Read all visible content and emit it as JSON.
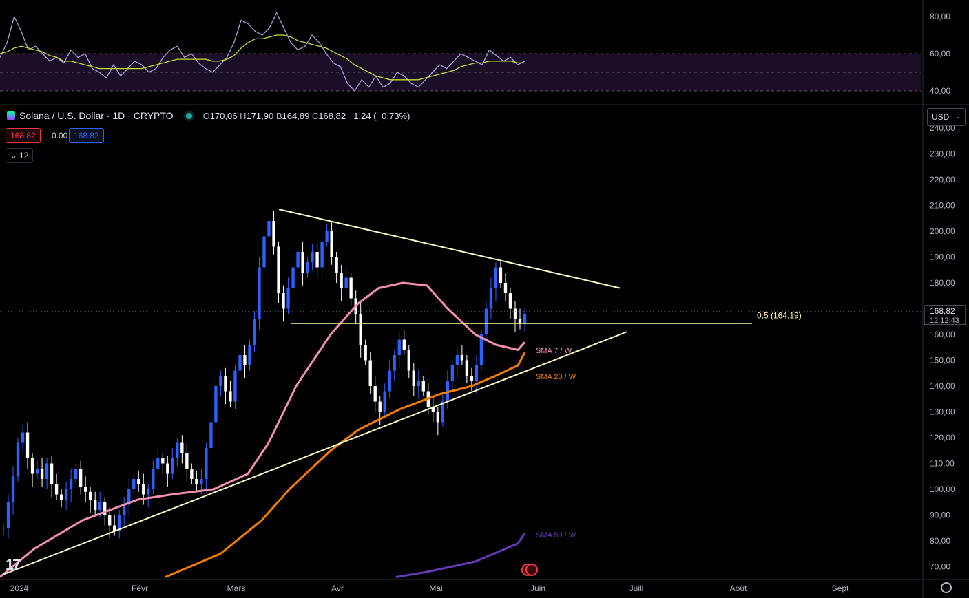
{
  "header": {
    "symbol": "Solana / U.S. Dollar · 1D · CRYPTO",
    "open_label": "O",
    "open": "170,06",
    "high_label": "H",
    "high": "171,90",
    "low_label": "B",
    "low": "164,89",
    "close_label": "C",
    "close": "168,82",
    "change": "−1,24 (−0,73%)",
    "badge_bid": "168.82",
    "badge_spread": "0.00",
    "badge_ask": "168.82",
    "collapse_count": "12",
    "currency": "USD",
    "logo": "17"
  },
  "colors": {
    "up": "#2962ff",
    "down": "#ffffff",
    "sma7": "#f48fb1",
    "sma20": "#f57c00",
    "sma50": "#673ab7",
    "trendline": "#fff9c4",
    "fib": "#fff59d",
    "rsi": "#9c27b0",
    "rsi_ma": "#cddc39"
  },
  "chart_data": [
    {
      "type": "line",
      "subtitle": "RSI",
      "y_ticks": [
        "80,00",
        "60,00",
        "40,00"
      ],
      "ylim": [
        36,
        86
      ],
      "bands": [
        40,
        60
      ],
      "series": [
        {
          "values": [
            58,
            66,
            80,
            72,
            62,
            64,
            60,
            56,
            58,
            55,
            62,
            58,
            60,
            52,
            50,
            47,
            54,
            48,
            52,
            56,
            54,
            50,
            52,
            58,
            62,
            64,
            58,
            60,
            55,
            52,
            50,
            54,
            58,
            66,
            78,
            76,
            72,
            70,
            74,
            82,
            74,
            66,
            62,
            64,
            70,
            66,
            60,
            55,
            53,
            44,
            40,
            46,
            42,
            48,
            42,
            44,
            50,
            48,
            44,
            42,
            46,
            50,
            54,
            52,
            56,
            60,
            58,
            56,
            54,
            62,
            59,
            56,
            58,
            54,
            56
          ]
        },
        {
          "values": [
            60,
            61,
            63,
            64,
            63,
            62,
            61,
            59,
            58,
            56,
            56,
            55,
            54,
            53,
            52,
            52,
            52,
            52,
            52,
            52,
            52,
            53,
            54,
            55,
            56,
            57,
            57,
            57,
            57,
            57,
            56,
            56,
            57,
            59,
            63,
            66,
            68,
            68,
            69,
            70,
            70,
            69,
            67,
            66,
            65,
            64,
            63,
            61,
            59,
            57,
            54,
            52,
            50,
            48,
            47,
            46,
            46,
            46,
            46,
            46,
            47,
            48,
            49,
            50,
            51,
            53,
            54,
            55,
            55,
            56,
            56,
            56,
            56,
            55,
            55
          ]
        }
      ]
    },
    {
      "type": "candlestick",
      "x_ticks": [
        "2024",
        "Févr",
        "Mars",
        "Avr",
        "Mai",
        "Juin",
        "Juill",
        "Août",
        "Sept"
      ],
      "y_ticks": [
        "240,00",
        "230,00",
        "220,00",
        "210,00",
        "200,00",
        "190,00",
        "180,00",
        "170,00",
        "160,00",
        "150,00",
        "140,00",
        "130,00",
        "120,00",
        "110,00",
        "100,00",
        "90,00",
        "80,00",
        "70,00"
      ],
      "ylim": [
        66,
        246
      ],
      "last_price": "168,82",
      "countdown": "12:12:43",
      "fib_label": "0,5 (164,19)",
      "fib_level": 164.19,
      "sma_labels": [
        "SMA 7 / W",
        "SMA 20 / W",
        "SMA 50 / W"
      ],
      "close_start": 85,
      "closes": [
        85,
        95,
        105,
        118,
        122,
        112,
        106,
        108,
        104,
        110,
        102,
        98,
        96,
        100,
        104,
        108,
        101,
        99,
        96,
        92,
        95,
        90,
        86,
        84,
        90,
        94,
        100,
        104,
        102,
        98,
        100,
        108,
        112,
        110,
        106,
        112,
        118,
        114,
        108,
        104,
        102,
        104,
        116,
        126,
        140,
        144,
        138,
        134,
        146,
        152,
        148,
        156,
        166,
        186,
        198,
        204,
        194,
        176,
        170,
        178,
        186,
        192,
        184,
        188,
        192,
        186,
        196,
        200,
        190,
        184,
        178,
        182,
        174,
        168,
        156,
        150,
        140,
        134,
        130,
        138,
        146,
        152,
        158,
        154,
        146,
        140,
        142,
        138,
        132,
        130,
        126,
        134,
        142,
        148,
        152,
        150,
        144,
        142,
        148,
        160,
        170,
        178,
        186,
        180,
        176,
        170,
        166,
        164,
        168
      ]
    }
  ]
}
